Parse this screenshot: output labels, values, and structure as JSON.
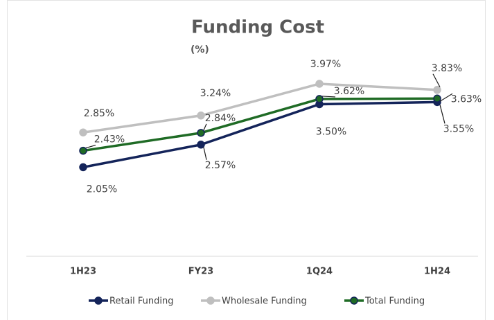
{
  "chart_data": {
    "type": "line",
    "title": "Funding Cost",
    "subtitle": "(%)",
    "categories": [
      "1H23",
      "FY23",
      "1Q24",
      "1H24"
    ],
    "ylim": [
      0,
      5.5
    ],
    "series": [
      {
        "name": "Retail Funding",
        "color": "#14245a",
        "values": [
          2.05,
          2.57,
          3.5,
          3.55
        ],
        "value_labels": [
          "2.05%",
          "2.57%",
          "3.50%",
          "3.55%"
        ]
      },
      {
        "name": "Wholesale Funding",
        "color": "#bfbfbf",
        "values": [
          2.85,
          3.24,
          3.97,
          3.83
        ],
        "value_labels": [
          "2.85%",
          "3.24%",
          "3.97%",
          "3.83%"
        ]
      },
      {
        "name": "Total Funding",
        "color": "#1f6b25",
        "values": [
          2.43,
          2.84,
          3.62,
          3.63
        ],
        "value_labels": [
          "2.43%",
          "2.84%",
          "3.62%",
          "3.63%"
        ]
      }
    ]
  }
}
